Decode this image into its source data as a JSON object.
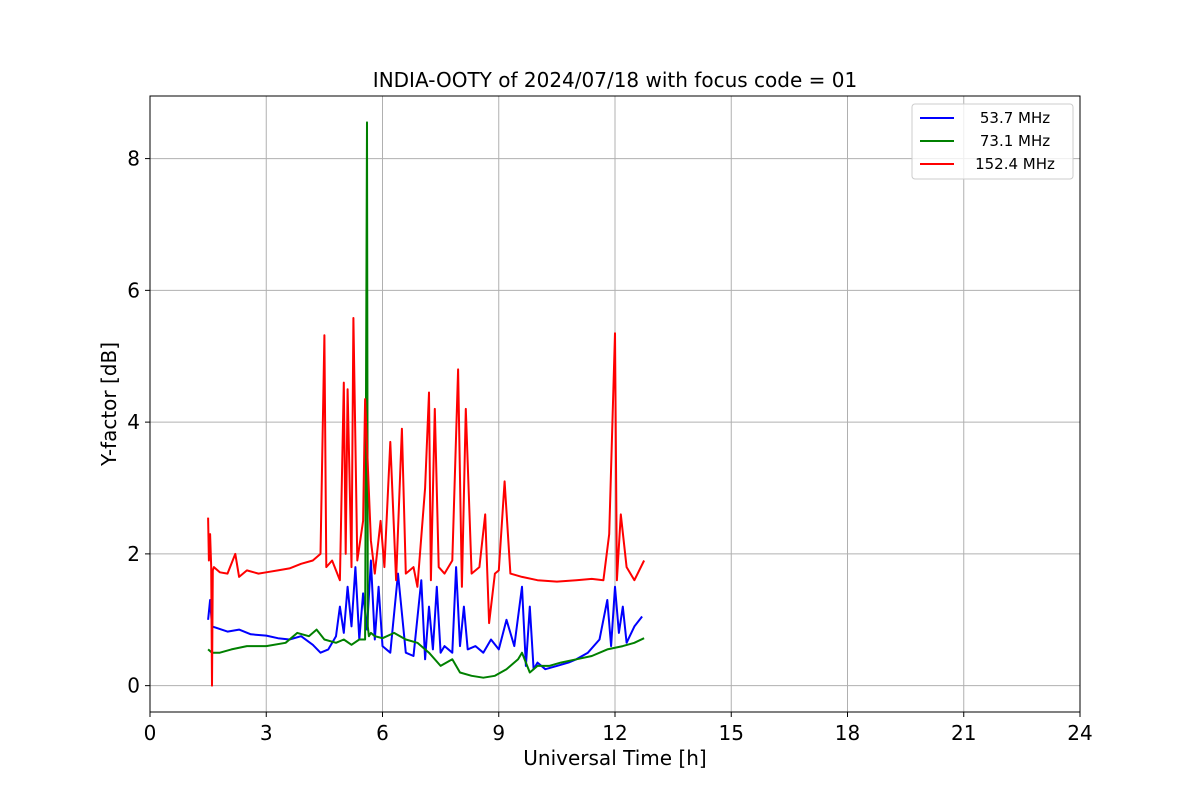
{
  "chart_data": {
    "type": "line",
    "title": "INDIA-OOTY of 2024/07/18 with focus code = 01",
    "xlabel": "Universal Time [h]",
    "ylabel": "Y-factor [dB]",
    "xlim": [
      0,
      24
    ],
    "ylim": [
      -0.4,
      8.95
    ],
    "xticks": [
      0,
      3,
      6,
      9,
      12,
      15,
      18,
      21,
      24
    ],
    "yticks": [
      0,
      2,
      4,
      6,
      8
    ],
    "grid": true,
    "legend_position": "top-right",
    "series": [
      {
        "name": "53.7 MHz",
        "color": "#0000ff",
        "x": [
          1.5,
          1.55,
          1.6,
          1.7,
          2.0,
          2.3,
          2.6,
          3.0,
          3.3,
          3.6,
          3.9,
          4.2,
          4.4,
          4.6,
          4.8,
          4.9,
          5.0,
          5.1,
          5.2,
          5.3,
          5.4,
          5.5,
          5.6,
          5.7,
          5.8,
          5.9,
          6.0,
          6.2,
          6.4,
          6.6,
          6.8,
          7.0,
          7.1,
          7.2,
          7.3,
          7.4,
          7.5,
          7.6,
          7.8,
          7.9,
          8.0,
          8.1,
          8.2,
          8.4,
          8.6,
          8.8,
          9.0,
          9.2,
          9.4,
          9.6,
          9.7,
          9.8,
          9.9,
          10.0,
          10.2,
          10.5,
          10.8,
          11.0,
          11.3,
          11.6,
          11.8,
          11.9,
          12.0,
          12.1,
          12.2,
          12.3,
          12.5,
          12.7
        ],
        "y": [
          1.0,
          1.3,
          0.9,
          0.88,
          0.82,
          0.85,
          0.78,
          0.76,
          0.72,
          0.7,
          0.75,
          0.62,
          0.5,
          0.55,
          0.75,
          1.2,
          0.8,
          1.5,
          0.9,
          1.8,
          0.7,
          1.4,
          0.85,
          1.9,
          0.7,
          1.5,
          0.6,
          0.5,
          1.7,
          0.5,
          0.45,
          1.6,
          0.4,
          1.2,
          0.55,
          1.5,
          0.5,
          0.6,
          0.5,
          1.8,
          0.6,
          1.2,
          0.55,
          0.6,
          0.5,
          0.7,
          0.55,
          1.0,
          0.6,
          1.5,
          0.3,
          1.2,
          0.25,
          0.35,
          0.25,
          0.3,
          0.35,
          0.4,
          0.5,
          0.7,
          1.3,
          0.6,
          1.5,
          0.8,
          1.2,
          0.65,
          0.9,
          1.05
        ]
      },
      {
        "name": "73.1 MHz",
        "color": "#008000",
        "x": [
          1.5,
          1.6,
          1.8,
          2.1,
          2.5,
          3.0,
          3.5,
          3.8,
          4.1,
          4.3,
          4.5,
          4.8,
          5.0,
          5.2,
          5.4,
          5.55,
          5.6,
          5.62,
          5.65,
          5.7,
          5.8,
          6.0,
          6.3,
          6.6,
          6.9,
          7.2,
          7.5,
          7.8,
          8.0,
          8.3,
          8.6,
          8.9,
          9.2,
          9.5,
          9.6,
          9.8,
          10.0,
          10.3,
          10.6,
          11.0,
          11.4,
          11.8,
          12.2,
          12.5,
          12.75
        ],
        "y": [
          0.55,
          0.5,
          0.5,
          0.55,
          0.6,
          0.6,
          0.65,
          0.8,
          0.75,
          0.85,
          0.7,
          0.65,
          0.7,
          0.62,
          0.7,
          0.7,
          8.55,
          0.9,
          0.75,
          0.8,
          0.75,
          0.72,
          0.8,
          0.7,
          0.65,
          0.5,
          0.3,
          0.4,
          0.2,
          0.15,
          0.12,
          0.15,
          0.25,
          0.4,
          0.5,
          0.2,
          0.3,
          0.3,
          0.35,
          0.4,
          0.45,
          0.55,
          0.6,
          0.65,
          0.72
        ]
      },
      {
        "name": "152.4 MHz",
        "color": "#ff0000",
        "x": [
          1.5,
          1.52,
          1.55,
          1.58,
          1.6,
          1.62,
          1.65,
          1.8,
          2.0,
          2.2,
          2.3,
          2.5,
          2.8,
          3.0,
          3.3,
          3.6,
          3.9,
          4.2,
          4.4,
          4.5,
          4.55,
          4.7,
          4.9,
          5.0,
          5.05,
          5.1,
          5.2,
          5.25,
          5.35,
          5.5,
          5.55,
          5.7,
          5.8,
          5.95,
          6.05,
          6.2,
          6.35,
          6.5,
          6.6,
          6.8,
          6.9,
          7.1,
          7.2,
          7.25,
          7.35,
          7.45,
          7.6,
          7.8,
          7.95,
          8.05,
          8.15,
          8.3,
          8.5,
          8.65,
          8.75,
          8.9,
          9.0,
          9.15,
          9.3,
          9.6,
          10.0,
          10.5,
          11.0,
          11.4,
          11.7,
          11.85,
          12.0,
          12.05,
          12.15,
          12.3,
          12.5,
          12.75
        ],
        "y": [
          2.55,
          1.9,
          2.3,
          1.8,
          0.0,
          1.75,
          1.8,
          1.72,
          1.7,
          2.0,
          1.65,
          1.75,
          1.7,
          1.72,
          1.75,
          1.78,
          1.85,
          1.9,
          2.0,
          5.32,
          1.8,
          1.9,
          1.6,
          4.6,
          2.0,
          4.5,
          1.8,
          5.58,
          1.9,
          2.5,
          4.35,
          2.2,
          1.7,
          2.5,
          1.8,
          3.7,
          1.6,
          3.9,
          1.7,
          1.8,
          1.5,
          3.0,
          4.45,
          1.6,
          4.2,
          1.8,
          1.7,
          1.9,
          4.8,
          1.5,
          4.2,
          1.7,
          1.8,
          2.6,
          0.95,
          1.7,
          1.75,
          3.1,
          1.7,
          1.65,
          1.6,
          1.58,
          1.6,
          1.62,
          1.6,
          2.3,
          5.35,
          1.6,
          2.6,
          1.8,
          1.6,
          1.9
        ]
      }
    ]
  }
}
